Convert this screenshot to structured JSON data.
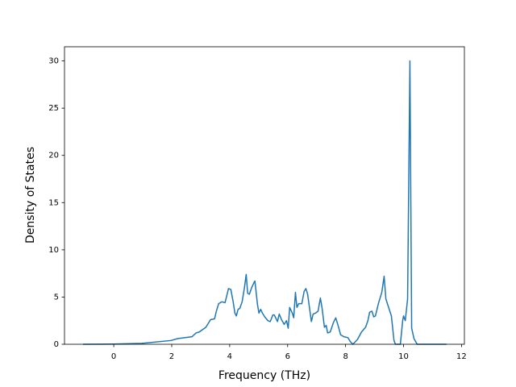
{
  "chart_data": {
    "type": "line",
    "xlabel": "Frequency (THz)",
    "ylabel": "Density of States",
    "xlim": [
      -1.7,
      12.1
    ],
    "ylim": [
      0,
      31.5
    ],
    "xticks": [
      0,
      2,
      4,
      6,
      8,
      10,
      12
    ],
    "yticks": [
      0,
      5,
      10,
      15,
      20,
      25,
      30
    ],
    "series": [
      {
        "color": "#1f77b4",
        "x": [
          -1.06,
          0,
          0.97,
          1.98,
          2.2,
          2.7,
          2.84,
          2.95,
          3.18,
          3.34,
          3.48,
          3.54,
          3.62,
          3.73,
          3.84,
          3.96,
          4.04,
          4.12,
          4.18,
          4.23,
          4.29,
          4.35,
          4.43,
          4.51,
          4.57,
          4.62,
          4.68,
          4.76,
          4.85,
          4.87,
          4.96,
          5.01,
          5.07,
          5.13,
          5.21,
          5.32,
          5.4,
          5.49,
          5.54,
          5.65,
          5.71,
          5.79,
          5.88,
          5.96,
          6.02,
          6.07,
          6.16,
          6.21,
          6.27,
          6.32,
          6.38,
          6.49,
          6.57,
          6.63,
          6.69,
          6.77,
          6.82,
          6.88,
          6.96,
          7.05,
          7.13,
          7.19,
          7.27,
          7.33,
          7.38,
          7.47,
          7.58,
          7.66,
          7.74,
          7.83,
          7.94,
          8.08,
          8.16,
          8.25,
          8.41,
          8.55,
          8.69,
          8.77,
          8.83,
          8.91,
          8.97,
          9.03,
          9.14,
          9.25,
          9.33,
          9.39,
          9.58,
          9.67,
          9.72,
          9.89,
          9.97,
          10.0,
          10.06,
          10.14,
          10.22,
          10.28,
          10.36,
          10.47,
          11.48
        ],
        "values": [
          0,
          0.02,
          0.1,
          0.4,
          0.6,
          0.8,
          1.2,
          1.3,
          1.8,
          2.6,
          2.7,
          3.5,
          4.3,
          4.5,
          4.4,
          5.9,
          5.8,
          4.5,
          3.3,
          3.0,
          3.7,
          3.8,
          4.5,
          6.0,
          7.4,
          5.4,
          5.3,
          6.0,
          6.6,
          6.7,
          4.2,
          3.3,
          3.7,
          3.3,
          2.9,
          2.5,
          2.4,
          3.1,
          3.1,
          2.4,
          3.2,
          2.6,
          2.1,
          2.5,
          1.7,
          3.9,
          3.3,
          2.8,
          5.5,
          3.9,
          4.3,
          4.3,
          5.6,
          5.9,
          5.3,
          3.5,
          2.4,
          3.2,
          3.3,
          3.5,
          4.9,
          3.8,
          1.8,
          2.0,
          1.2,
          1.3,
          2.3,
          2.8,
          2.0,
          1.0,
          0.8,
          0.7,
          0.3,
          0,
          0.5,
          1.3,
          1.8,
          2.5,
          3.4,
          3.5,
          2.9,
          3.0,
          4.4,
          5.5,
          7.2,
          4.8,
          3.0,
          0.4,
          0,
          0,
          2.5,
          3.0,
          2.5,
          4.8,
          30,
          1.7,
          0.6,
          0,
          0
        ]
      }
    ]
  }
}
